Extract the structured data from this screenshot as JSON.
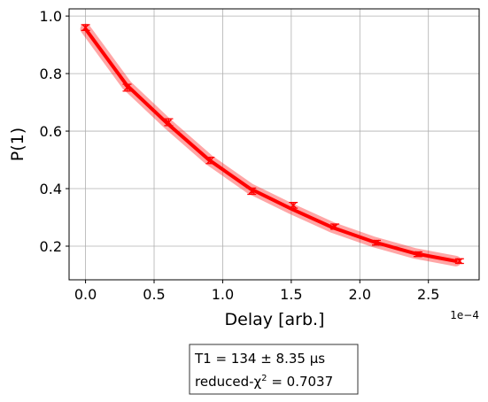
{
  "chart_data": {
    "type": "scatter",
    "xlabel": "Delay [arb.]",
    "ylabel": "P(1)",
    "x_offset_label": "1e−4",
    "xlim": [
      -0.12,
      2.87
    ],
    "ylim": [
      0.083,
      1.025
    ],
    "xticks": [
      {
        "value": 0,
        "label": "0.0"
      },
      {
        "value": 0.5,
        "label": "0.5"
      },
      {
        "value": 1,
        "label": "1.0"
      },
      {
        "value": 1.5,
        "label": "1.5"
      },
      {
        "value": 2,
        "label": "2.0"
      },
      {
        "value": 2.5,
        "label": "2.5"
      }
    ],
    "yticks": [
      {
        "value": 0.2,
        "label": "0.2"
      },
      {
        "value": 0.4,
        "label": "0.4"
      },
      {
        "value": 0.6,
        "label": "0.6"
      },
      {
        "value": 0.8,
        "label": "0.8"
      },
      {
        "value": 1,
        "label": "1.0"
      }
    ],
    "grid": true,
    "series": [
      {
        "color": "#ff0000",
        "x": [
          0,
          0.303,
          0.606,
          0.909,
          1.212,
          1.515,
          1.818,
          2.121,
          2.424,
          2.727
        ],
        "values": [
          0.96,
          0.751,
          0.631,
          0.498,
          0.391,
          0.342,
          0.268,
          0.212,
          0.172,
          0.148
        ],
        "errors": [
          0.01,
          0.012,
          0.012,
          0.011,
          0.011,
          0.01,
          0.009,
          0.008,
          0.008,
          0.008
        ]
      },
      {
        "type": "line",
        "color": "#ff0000",
        "x": [
          0,
          0.3,
          0.6,
          0.9,
          1.2,
          1.5,
          1.8,
          2.1,
          2.4,
          2.7
        ],
        "values": [
          0.955,
          0.76,
          0.625,
          0.5,
          0.4,
          0.33,
          0.265,
          0.215,
          0.175,
          0.148
        ]
      }
    ],
    "annotation": {
      "line1": "T1 =   134 ±  8.35 μs",
      "line2_before": "reduced-χ",
      "line2_sup": "2",
      "line2_after": " =  0.7037"
    }
  }
}
